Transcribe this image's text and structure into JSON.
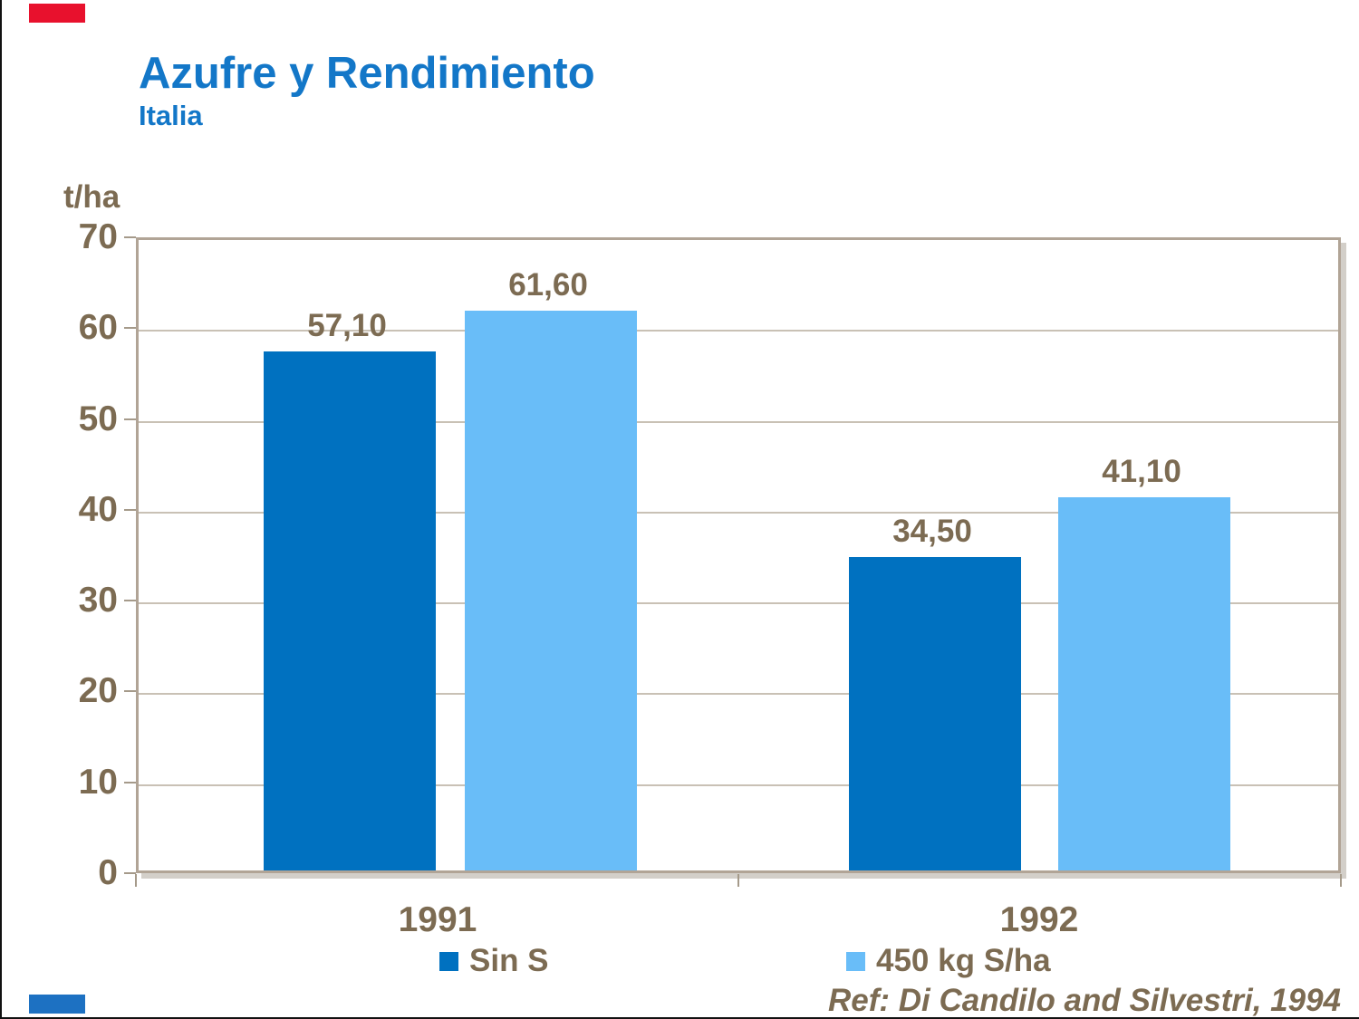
{
  "slide": {
    "title": "Azufre y Rendimiento",
    "subtitle": "Italia",
    "reference": "Ref: Di Candilo and Silvestri, 1994"
  },
  "accents": {
    "top_left_color": "#e8112d",
    "bottom_left_color": "#1d71c2"
  },
  "colors": {
    "title_blue": "#1377c8",
    "text_brown": "#7c6b52",
    "plot_border": "#b1a496",
    "gridline": "#c9c1b5",
    "series_dark_blue": "#0071c0",
    "series_light_blue": "#69bdf8"
  },
  "chart_data": {
    "type": "bar",
    "title": "Azufre y Rendimiento",
    "subtitle": "Italia",
    "ylabel": "t/ha",
    "xlabel": "",
    "categories": [
      "1991",
      "1992"
    ],
    "series": [
      {
        "name": "Sin S",
        "color": "#0071c0",
        "values": [
          57.1,
          34.5
        ],
        "labels": [
          "57,10",
          "34,50"
        ]
      },
      {
        "name": "450 kg S/ha",
        "color": "#69bdf8",
        "values": [
          61.6,
          41.1
        ],
        "labels": [
          "61,60",
          "41,10"
        ]
      }
    ],
    "ylim": [
      0,
      70
    ],
    "ystep": 10,
    "yticks": [
      0,
      10,
      20,
      30,
      40,
      50,
      60,
      70
    ],
    "grid": true,
    "legend_position": "bottom",
    "decimal_separator": ","
  }
}
